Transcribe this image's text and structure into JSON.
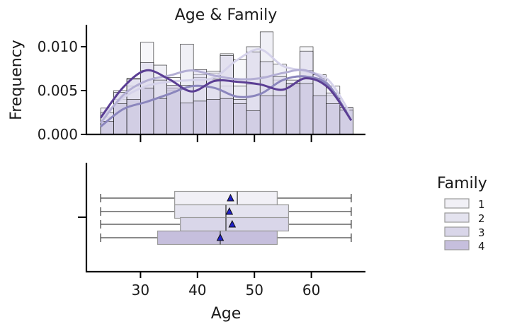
{
  "chart_data": {
    "type": "histogram+box",
    "title": "Age & Family",
    "xlabel": "Age",
    "ylabel_top": "Frequency",
    "xlim": [
      20.5,
      69.5
    ],
    "ylim_top": [
      0,
      0.0125
    ],
    "x_ticks": [
      30,
      40,
      50,
      60
    ],
    "y_ticks_top": [
      0.0,
      0.005,
      0.01
    ],
    "y_tick_labels_top": [
      "0.000",
      "0.005",
      "0.010"
    ],
    "legend": {
      "title": "Family",
      "placement": "right",
      "entries": [
        "1",
        "2",
        "3",
        "4"
      ]
    },
    "colors": {
      "1": "#f1f0f6",
      "2": "#e4e3ef",
      "3": "#d9d6e9",
      "4": "#c6bfdd",
      "kde_1": "#d5d2ea",
      "kde_2": "#b3aed4",
      "kde_3": "#8b86bd",
      "kde_4": "#5b3e94",
      "mean_marker": "#1f1fc8"
    },
    "histogram": {
      "bin_edges": [
        23,
        25.3,
        27.6,
        30,
        32.3,
        34.6,
        37,
        39.3,
        41.6,
        44,
        46.3,
        48.6,
        51,
        53.3,
        55.6,
        58,
        60.3,
        62.6,
        65,
        67.3
      ],
      "series": [
        {
          "name": "1",
          "values": [
            0.002,
            0.004,
            0.0055,
            0.0105,
            0.0065,
            0.0065,
            0.0062,
            0.0068,
            0.007,
            0.0055,
            0.0085,
            0.0057,
            0.0066,
            0.0062,
            0.0055,
            0.01,
            0.0064,
            0.0055,
            0.003
          ]
        },
        {
          "name": "2",
          "values": [
            0.003,
            0.005,
            0.0064,
            0.0073,
            0.0079,
            0.005,
            0.0103,
            0.0065,
            0.0072,
            0.0092,
            0.0055,
            0.01,
            0.0117,
            0.008,
            0.0062,
            0.0073,
            0.0064,
            0.0044,
            0.0028
          ]
        },
        {
          "name": "3",
          "values": [
            0.0025,
            0.0048,
            0.0063,
            0.0082,
            0.0062,
            0.0053,
            0.0056,
            0.0074,
            0.0063,
            0.009,
            0.004,
            0.0094,
            0.0083,
            0.0066,
            0.0058,
            0.0095,
            0.0068,
            0.0047,
            0.0031
          ]
        },
        {
          "name": "4",
          "values": [
            0.0015,
            0.0035,
            0.004,
            0.0053,
            0.0041,
            0.0056,
            0.0036,
            0.0038,
            0.004,
            0.0041,
            0.0035,
            0.0027,
            0.0044,
            0.0044,
            0.0058,
            0.0058,
            0.0044,
            0.0035,
            0.0028
          ]
        }
      ]
    },
    "kde": {
      "x": [
        23,
        27,
        31,
        35,
        39,
        43,
        47,
        51,
        55,
        59,
        63,
        67
      ],
      "series": [
        {
          "name": "1",
          "values": [
            0.0019,
            0.0042,
            0.0055,
            0.006,
            0.0062,
            0.0065,
            0.0085,
            0.0097,
            0.0078,
            0.0072,
            0.0062,
            0.0022
          ]
        },
        {
          "name": "2",
          "values": [
            0.0013,
            0.0045,
            0.0061,
            0.0067,
            0.0073,
            0.0067,
            0.0063,
            0.0064,
            0.007,
            0.0073,
            0.0057,
            0.0016
          ]
        },
        {
          "name": "3",
          "values": [
            0.0009,
            0.0029,
            0.0037,
            0.0046,
            0.0055,
            0.0053,
            0.0043,
            0.0046,
            0.0062,
            0.0066,
            0.0056,
            0.0016
          ]
        },
        {
          "name": "4",
          "values": [
            0.0019,
            0.0054,
            0.0073,
            0.0063,
            0.0049,
            0.0061,
            0.006,
            0.0057,
            0.0051,
            0.0064,
            0.0053,
            0.0016
          ]
        }
      ]
    },
    "boxplot": {
      "series": [
        {
          "name": "1",
          "whisker_low": 23,
          "q1": 36,
          "median": 47,
          "q3": 54,
          "whisker_high": 67,
          "mean": 45.8
        },
        {
          "name": "2",
          "whisker_low": 23,
          "q1": 36,
          "median": 45,
          "q3": 56,
          "whisker_high": 67,
          "mean": 45.6
        },
        {
          "name": "3",
          "whisker_low": 23,
          "q1": 37,
          "median": 45,
          "q3": 56,
          "whisker_high": 67,
          "mean": 46.1
        },
        {
          "name": "4",
          "whisker_low": 23,
          "q1": 33,
          "median": 44,
          "q3": 54,
          "whisker_high": 67,
          "mean": 44.0
        }
      ]
    }
  }
}
